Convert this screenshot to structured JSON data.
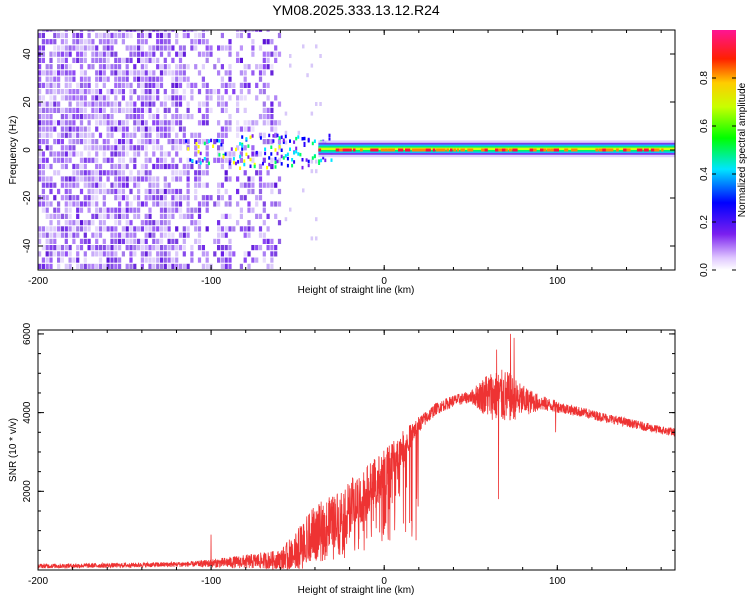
{
  "title": "YM08.2025.333.13.12.R24",
  "colors": {
    "snr_line": "#ee3333",
    "spectro_base": "#6a1fe8",
    "axis": "#000000"
  },
  "chart_data": [
    {
      "type": "heatmap",
      "name": "spectrogram",
      "title": "YM08.2025.333.13.12.R24",
      "xlabel": "Height of straight line (km)",
      "ylabel": "Frequency (Hz)",
      "xlim": [
        -200,
        168
      ],
      "ylim": [
        -50,
        50
      ],
      "x_ticks": [
        -200,
        -100,
        0,
        100
      ],
      "x_tick_labels": [
        "-200",
        "-100",
        "0",
        "100"
      ],
      "y_ticks": [
        -40,
        -20,
        0,
        20,
        40
      ],
      "y_tick_labels": [
        "-40",
        "-20",
        "0",
        "20",
        "40"
      ],
      "noise_region_km": [
        -200,
        -60
      ],
      "sparse_region_km": [
        -60,
        -35
      ],
      "signal_band_hz": [
        -3,
        3
      ],
      "signal_start_km": -38,
      "colorbar": {
        "label": "Normalized spectral amplitude",
        "range": [
          0.0,
          1.0
        ],
        "ticks": [
          0.0,
          0.2,
          0.4,
          0.6,
          0.8
        ],
        "tick_labels": [
          "0.0",
          "0.2",
          "0.4",
          "0.6",
          "0.8"
        ],
        "stops": [
          "#ffffff",
          "#6a1fe8",
          "#0000ff",
          "#00e5ff",
          "#00ff00",
          "#ffff00",
          "#ff0000",
          "#ff1493"
        ]
      }
    },
    {
      "type": "line",
      "name": "snr",
      "xlabel": "Height of straight line (km)",
      "ylabel": "SNR (10 * v/v)",
      "xlim": [
        -200,
        168
      ],
      "ylim": [
        0,
        6100
      ],
      "x_ticks": [
        -200,
        -100,
        0,
        100
      ],
      "x_tick_labels": [
        "-200",
        "-100",
        "0",
        "100"
      ],
      "y_ticks": [
        2000,
        4000,
        6000
      ],
      "y_tick_labels": [
        "2000",
        "4000",
        "6000"
      ],
      "envelope": {
        "x": [
          -200,
          -150,
          -110,
          -90,
          -60,
          -50,
          -40,
          -30,
          -20,
          -10,
          0,
          10,
          20,
          30,
          40,
          50,
          60,
          70,
          80,
          90,
          100,
          110,
          120,
          130,
          140,
          150,
          160,
          168
        ],
        "y": [
          100,
          120,
          150,
          190,
          260,
          450,
          950,
          1200,
          1600,
          2000,
          2500,
          3100,
          3700,
          4100,
          4300,
          4400,
          4450,
          4400,
          4300,
          4250,
          4150,
          4050,
          3950,
          3850,
          3750,
          3650,
          3550,
          3500
        ],
        "noise": [
          60,
          60,
          70,
          140,
          250,
          600,
          700,
          700,
          700,
          650,
          550,
          400,
          200,
          150,
          150,
          150,
          600,
          700,
          400,
          200,
          150,
          130,
          120,
          120,
          110,
          110,
          110,
          110
        ]
      },
      "spikes": [
        {
          "x": -100,
          "y": 900
        },
        {
          "x": 65,
          "y": 5600
        },
        {
          "x": 73,
          "y": 6000
        },
        {
          "x": 75,
          "y": 5900
        },
        {
          "x": 66,
          "y": 1800
        },
        {
          "x": 99,
          "y": 3500
        }
      ]
    }
  ]
}
